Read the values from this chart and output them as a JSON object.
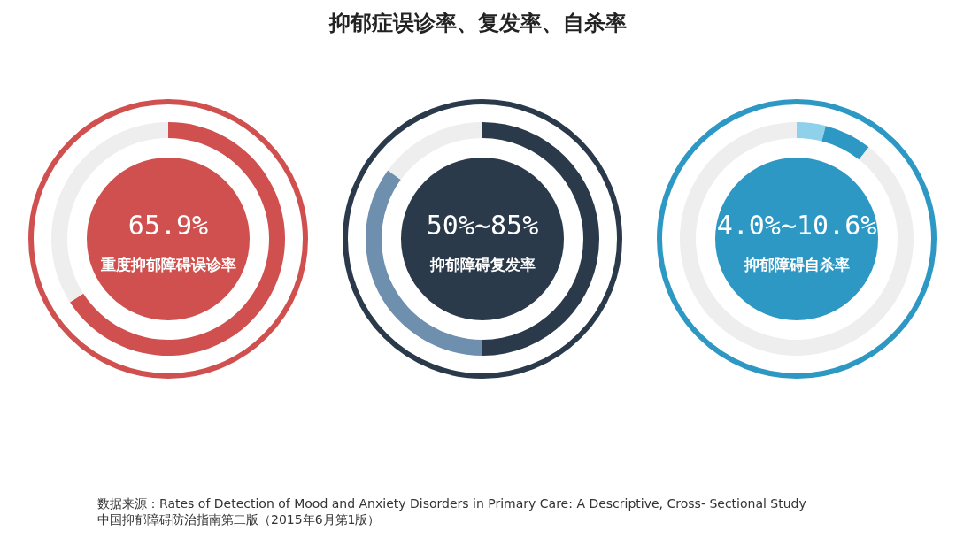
{
  "chart_data": [
    {
      "type": "donut",
      "categories": [
        null,
        null
      ],
      "values": [
        65.9,
        34.1
      ],
      "colors": [
        "#d0504f",
        "#eeeeee"
      ],
      "annotations": [
        "65.9%",
        "重度抑郁障碍误诊率"
      ]
    },
    {
      "type": "donut",
      "title": "抑郁症误诊率、复发率、自杀率",
      "categories": [
        null,
        null,
        null
      ],
      "values": [
        50,
        35,
        15
      ],
      "colors": [
        "#2b3a4a",
        "#6f8fae",
        "#eeeeee"
      ],
      "annotations": [
        "50%~85%",
        "抑郁障碍复发率"
      ]
    },
    {
      "type": "donut",
      "categories": [
        null,
        null,
        null
      ],
      "values": [
        4.0,
        6.6,
        89.4
      ],
      "colors": [
        "#8fd0ea",
        "#2d98c3",
        "#eeeeee"
      ],
      "annotations": [
        "4.0%~10.6%",
        "抑郁障碍自杀率",
        "数据来源：Rates of Detection of Mood and Anxiety Disorders in Primary Care: A Descriptive, Cross- Sectional Study",
        "中国抑郁障碍防治指南第二版（2015年6月第1版）"
      ]
    }
  ]
}
